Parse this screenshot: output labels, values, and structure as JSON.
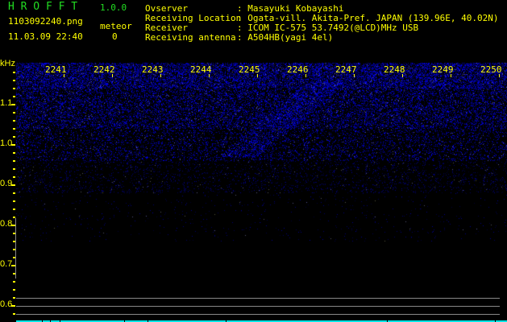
{
  "header": {
    "app_name": "H R O F F T",
    "version": "1.0.0",
    "filename": "1103092240.png",
    "datetime": "11.03.09 22:40",
    "meteor_label": "meteor",
    "meteor_count": "0"
  },
  "info": [
    {
      "label": "Ovserver",
      "value": ": Masayuki Kobayashi"
    },
    {
      "label": "Receiving Location",
      "value": ": Ogata-vill. Akita-Pref. JAPAN (139.96E, 40.02N)"
    },
    {
      "label": "Receiver",
      "value": ": ICOM IC-575 53.7492(@LCD)MHz USB"
    },
    {
      "label": "Receiving antenna",
      "value": ": A504HB(yagi 4el)"
    }
  ],
  "chart_data": {
    "type": "heatmap",
    "ylabel": "kHz",
    "ylim": [
      0.58,
      1.2
    ],
    "y_ticks": [
      "1.1",
      "1.0",
      "0.9",
      "0.8",
      "0.7",
      "0.6"
    ],
    "x_tick_labels": [
      "2241",
      "2242",
      "2243",
      "2244",
      "2245",
      "2246",
      "2247",
      "2248",
      "2249",
      "2250"
    ],
    "colors": {
      "noise": "#1a1aff",
      "labels": "#ffff00",
      "title": "#22dd22",
      "bottom_bar": "#00e5e5"
    }
  }
}
